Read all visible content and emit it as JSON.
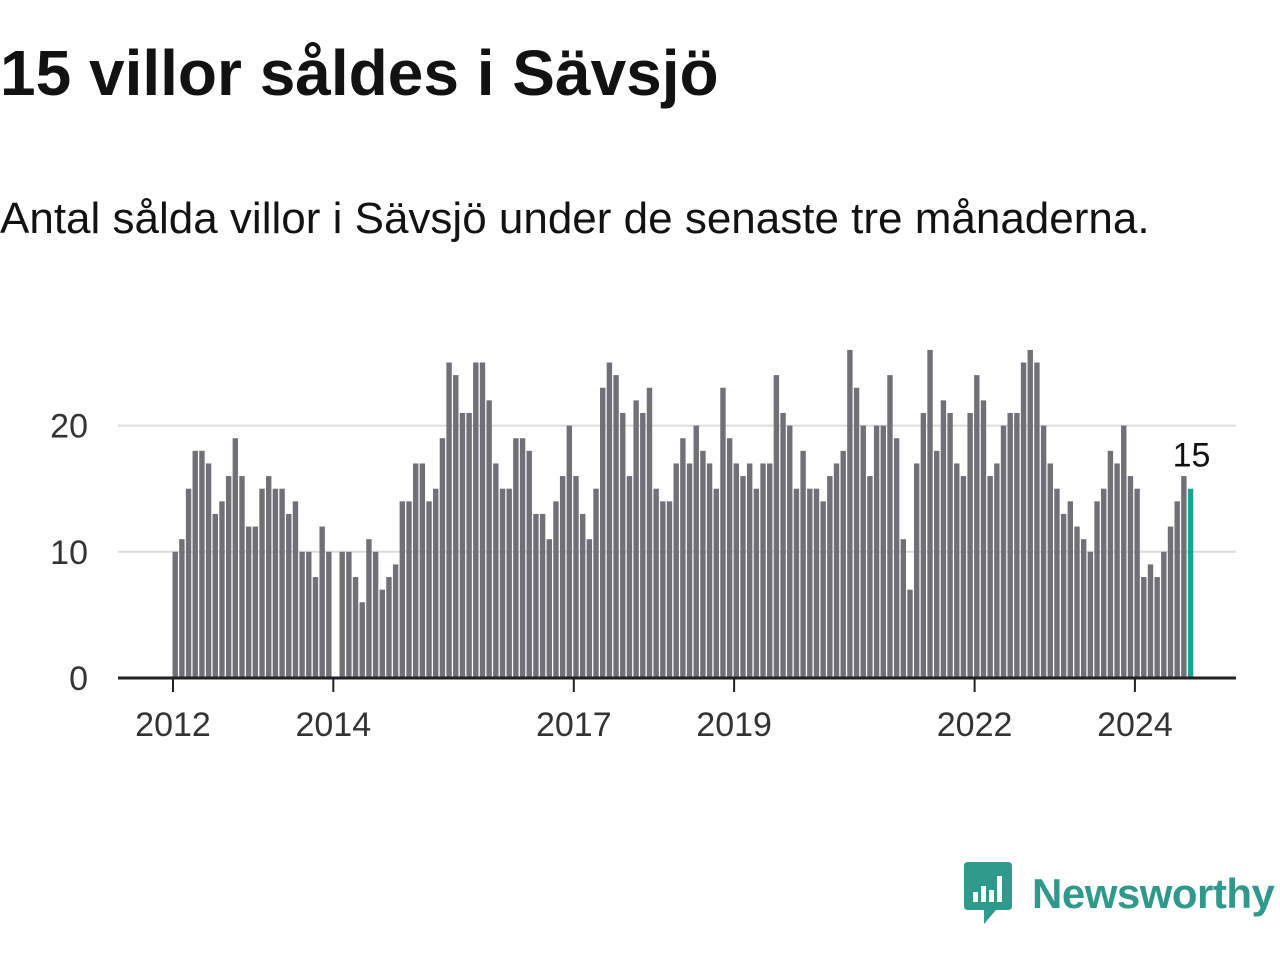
{
  "title": "15 villor såldes i Sävsjö",
  "subtitle": "Antal sålda villor i Sävsjö under de senaste tre månaderna.",
  "brand": {
    "name": "Newsworthy",
    "icon": "newsworthy-logo-icon",
    "color": "#2f9a8c"
  },
  "colors": {
    "bar": "#717077",
    "highlight": "#18a495",
    "grid": "#dcdcdc",
    "axis": "#222222",
    "text": "#333333"
  },
  "chart_data": {
    "type": "bar",
    "start": "2012-01",
    "values": [
      10,
      11,
      15,
      18,
      18,
      17,
      13,
      14,
      16,
      19,
      16,
      12,
      12,
      15,
      16,
      15,
      15,
      13,
      14,
      10,
      10,
      8,
      12,
      10,
      0,
      10,
      10,
      8,
      6,
      11,
      10,
      7,
      8,
      9,
      14,
      14,
      17,
      17,
      14,
      15,
      19,
      25,
      24,
      21,
      21,
      25,
      25,
      22,
      17,
      15,
      15,
      19,
      19,
      18,
      13,
      13,
      11,
      14,
      16,
      20,
      16,
      13,
      11,
      15,
      23,
      25,
      24,
      21,
      16,
      22,
      21,
      23,
      15,
      14,
      14,
      17,
      19,
      17,
      20,
      18,
      17,
      15,
      23,
      19,
      17,
      16,
      17,
      15,
      17,
      17,
      24,
      21,
      20,
      15,
      18,
      15,
      15,
      14,
      16,
      17,
      18,
      26,
      23,
      20,
      16,
      20,
      20,
      24,
      19,
      11,
      7,
      17,
      21,
      26,
      18,
      22,
      21,
      17,
      16,
      21,
      24,
      22,
      16,
      17,
      20,
      21,
      21,
      25,
      26,
      25,
      20,
      17,
      15,
      13,
      14,
      12,
      11,
      10,
      14,
      15,
      18,
      17,
      20,
      16,
      15,
      8,
      9,
      8,
      10,
      12,
      14,
      16,
      15
    ],
    "highlight_label": "15",
    "yticks": [
      0,
      10,
      20
    ],
    "xticks": [
      "2012",
      "2014",
      "2017",
      "2019",
      "2022",
      "2024"
    ],
    "xtick_month_index": [
      0,
      24,
      60,
      84,
      120,
      144
    ],
    "ylim": [
      0,
      26
    ],
    "grid": true
  }
}
